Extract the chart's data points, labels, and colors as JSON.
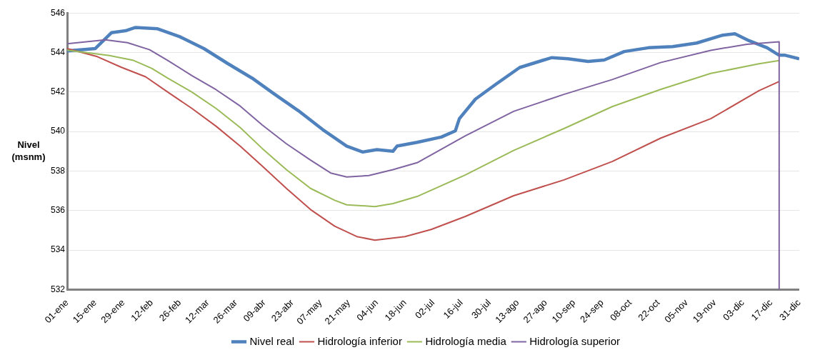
{
  "chart_data": {
    "type": "line",
    "ylabel": "Nivel\n(msnm)",
    "xlim": [
      "--01-01",
      "--12-31"
    ],
    "xticks": [
      {
        "value": "--01-01",
        "label": "01-ene"
      },
      {
        "value": "--01-15",
        "label": "15-ene"
      },
      {
        "value": "--01-29",
        "label": "29-ene"
      },
      {
        "value": "--02-12",
        "label": "12-feb"
      },
      {
        "value": "--02-26",
        "label": "26-feb"
      },
      {
        "value": "--03-12",
        "label": "12-mar"
      },
      {
        "value": "--03-26",
        "label": "26-mar"
      },
      {
        "value": "--04-09",
        "label": "09-abr"
      },
      {
        "value": "--04-23",
        "label": "23-abr"
      },
      {
        "value": "--05-07",
        "label": "07-may"
      },
      {
        "value": "--05-21",
        "label": "21-may"
      },
      {
        "value": "--06-04",
        "label": "04-jun"
      },
      {
        "value": "--06-18",
        "label": "18-jun"
      },
      {
        "value": "--07-02",
        "label": "02-jul"
      },
      {
        "value": "--07-16",
        "label": "16-jul"
      },
      {
        "value": "--07-30",
        "label": "30-jul"
      },
      {
        "value": "--08-13",
        "label": "13-ago"
      },
      {
        "value": "--08-27",
        "label": "27-ago"
      },
      {
        "value": "--09-10",
        "label": "10-sep"
      },
      {
        "value": "--09-24",
        "label": "24-sep"
      },
      {
        "value": "--10-08",
        "label": "08-oct"
      },
      {
        "value": "--10-22",
        "label": "22-oct"
      },
      {
        "value": "--11-05",
        "label": "05-nov"
      },
      {
        "value": "--11-19",
        "label": "19-nov"
      },
      {
        "value": "--12-03",
        "label": "03-dic"
      },
      {
        "value": "--12-17",
        "label": "17-dic"
      },
      {
        "value": "--12-31",
        "label": "31-dic"
      }
    ],
    "ylim": [
      532,
      546
    ],
    "yticks": [
      532,
      534,
      536,
      538,
      540,
      542,
      544,
      546
    ],
    "grid": "y",
    "legend": "bottom",
    "marker": "none",
    "line_style": "solid",
    "series": [
      {
        "name": "Nivel real",
        "color": "#4f81bd",
        "x": [
          "--01-01",
          "--01-15",
          "--01-23",
          "--01-30",
          "--02-04",
          "--02-15",
          "--02-26",
          "--03-10",
          "--03-22",
          "--04-03",
          "--04-14",
          "--04-26",
          "--05-08",
          "--05-20",
          "--05-28",
          "--06-04",
          "--06-12",
          "--06-14",
          "--06-24",
          "--07-06",
          "--07-13",
          "--07-15",
          "--07-23",
          "--08-02",
          "--08-14",
          "--08-26",
          "--08-30",
          "--09-07",
          "--09-17",
          "--09-25",
          "--10-05",
          "--10-17",
          "--10-29",
          "--11-10",
          "--11-23",
          "--11-29",
          "--12-06",
          "--12-15",
          "--12-21",
          "--12-24",
          "--12-31"
        ],
        "values": [
          544.08,
          544.2,
          545.0,
          545.1,
          545.27,
          545.2,
          544.8,
          544.2,
          543.43,
          542.7,
          541.9,
          541.05,
          540.1,
          539.26,
          538.96,
          539.08,
          539.0,
          539.26,
          539.45,
          539.72,
          540.03,
          540.65,
          541.64,
          542.38,
          543.24,
          543.62,
          543.74,
          543.68,
          543.55,
          543.62,
          544.05,
          544.24,
          544.3,
          544.48,
          544.88,
          544.95,
          544.6,
          544.24,
          543.86,
          543.86,
          543.68
        ]
      },
      {
        "name": "Hidrología inferior",
        "color": "#c0504d",
        "x": [
          "--01-01",
          "--01-16",
          "--01-28",
          "--02-09",
          "--02-20",
          "--03-04",
          "--03-16",
          "--03-28",
          "--04-08",
          "--04-20",
          "--05-02",
          "--05-14",
          "--05-25",
          "--06-03",
          "--06-18",
          "--07-01",
          "--07-18",
          "--08-11",
          "--09-05",
          "--09-29",
          "--10-23",
          "--11-17",
          "--12-11",
          "--12-21"
        ],
        "values": [
          544.2,
          543.79,
          543.25,
          542.77,
          542.0,
          541.17,
          540.27,
          539.26,
          538.25,
          537.12,
          536.05,
          535.21,
          534.68,
          534.5,
          534.68,
          535.04,
          535.7,
          536.75,
          537.55,
          538.48,
          539.66,
          540.65,
          542.07,
          542.53
        ]
      },
      {
        "name": "Hidrología media",
        "color": "#9bbb59",
        "x": [
          "--01-01",
          "--01-22",
          "--02-03",
          "--02-12",
          "--02-20",
          "--03-04",
          "--03-16",
          "--03-28",
          "--04-08",
          "--04-20",
          "--05-02",
          "--05-14",
          "--05-20",
          "--06-03",
          "--06-12",
          "--06-24",
          "--07-18",
          "--08-11",
          "--09-05",
          "--09-29",
          "--10-23",
          "--11-17",
          "--12-11",
          "--12-21"
        ],
        "values": [
          544.12,
          543.85,
          543.6,
          543.2,
          542.7,
          542.0,
          541.17,
          540.2,
          539.14,
          538.07,
          537.12,
          536.52,
          536.29,
          536.2,
          536.35,
          536.71,
          537.8,
          539.04,
          540.15,
          541.26,
          542.13,
          542.94,
          543.43,
          543.59
        ]
      },
      {
        "name": "Hidrología superior",
        "color": "#8064a2",
        "x": [
          "--01-01",
          "--01-20",
          "--01-31",
          "--02-11",
          "--02-20",
          "--03-04",
          "--03-16",
          "--03-28",
          "--04-08",
          "--04-20",
          "--05-02",
          "--05-12",
          "--05-20",
          "--05-31",
          "--06-12",
          "--06-24",
          "--07-18",
          "--08-11",
          "--09-05",
          "--09-29",
          "--10-23",
          "--11-17",
          "--12-05",
          "--12-21",
          "--12-21"
        ],
        "values": [
          544.44,
          544.64,
          544.5,
          544.14,
          543.6,
          542.83,
          542.12,
          541.29,
          540.33,
          539.38,
          538.55,
          537.9,
          537.7,
          537.77,
          538.07,
          538.42,
          539.78,
          541.02,
          541.88,
          542.63,
          543.49,
          544.11,
          544.42,
          544.54,
          532
        ]
      }
    ]
  }
}
